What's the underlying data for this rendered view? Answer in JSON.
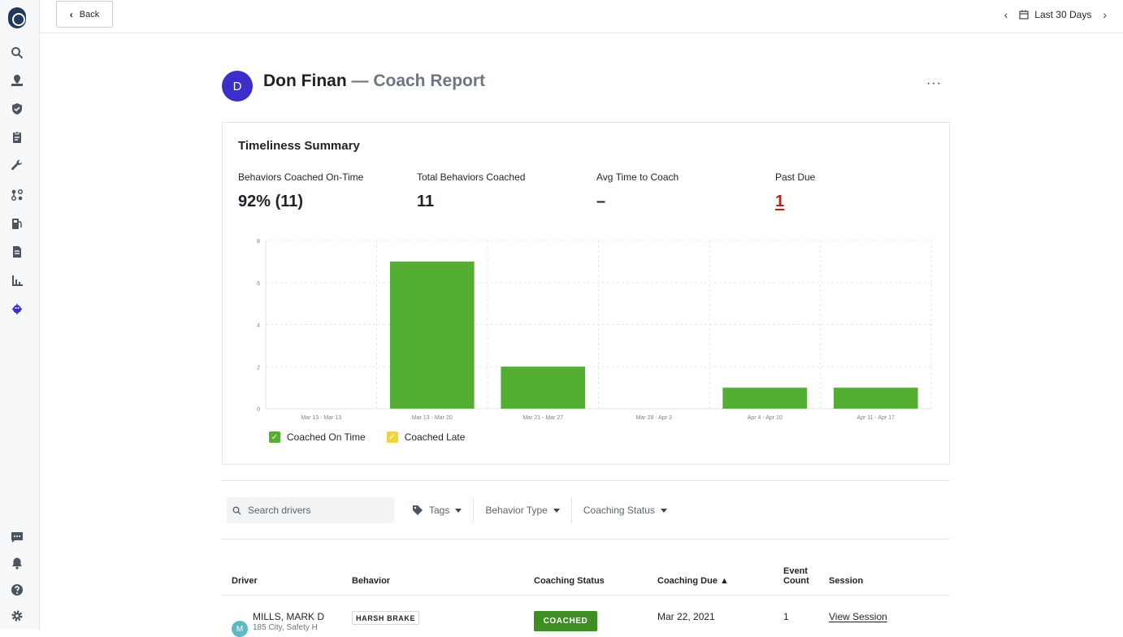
{
  "sidebar": {
    "icons": [
      "logo-icon",
      "search-icon",
      "map-icon",
      "shield-icon",
      "clipboard-icon",
      "wrench-icon",
      "route-icon",
      "fuel-icon",
      "document-icon",
      "chart-icon",
      "coaching-icon",
      "chat-icon",
      "bell-icon",
      "help-icon",
      "settings-icon"
    ]
  },
  "topbar": {
    "back_label": "Back",
    "date_range": "Last 30 Days"
  },
  "header": {
    "avatar_initial": "D",
    "name": "Don Finan",
    "subtitle": "— Coach Report",
    "more": "···"
  },
  "summary": {
    "title": "Timeliness Summary",
    "stats": [
      {
        "label": "Behaviors Coached On-Time",
        "value": "92% (11)"
      },
      {
        "label": "Total Behaviors Coached",
        "value": "11"
      },
      {
        "label": "Avg Time to Coach",
        "value": "–"
      },
      {
        "label": "Past Due",
        "value": "1"
      }
    ]
  },
  "chart_data": {
    "type": "bar",
    "categories": [
      "Mar 13 - Mar 13",
      "Mar 13 - Mar 20",
      "Mar 21 - Mar 27",
      "Mar 28 - Apr 3",
      "Apr 4 - Apr 10",
      "Apr 11 - Apr 17"
    ],
    "series": [
      {
        "name": "Coached On Time",
        "values": [
          0,
          7,
          2,
          0,
          1,
          1
        ],
        "color": "#54ae32"
      },
      {
        "name": "Coached Late",
        "values": [
          0,
          0,
          0,
          0,
          0,
          0
        ],
        "color": "#f0d43a"
      }
    ],
    "yticks": [
      "0",
      "2",
      "4",
      "6",
      "8"
    ],
    "ylim": [
      0,
      8
    ],
    "grid": true,
    "legend": "bottom-left"
  },
  "filters": {
    "search_placeholder": "Search drivers",
    "tags": "Tags",
    "behavior_type": "Behavior Type",
    "coaching_status": "Coaching Status"
  },
  "table": {
    "headers": {
      "driver": "Driver",
      "behavior": "Behavior",
      "coaching_status": "Coaching Status",
      "coaching_due": "Coaching Due ▲",
      "event_count_1": "Event",
      "event_count_2": "Count",
      "session": "Session"
    },
    "rows": [
      {
        "avatar": "M",
        "driver": "MILLS, MARK D",
        "driver_sub": "185 City, Safety H",
        "behavior": "HARSH BRAKE",
        "status": "COACHED",
        "due": "Mar 22, 2021",
        "event_count": "1",
        "session": "View Session"
      }
    ]
  }
}
